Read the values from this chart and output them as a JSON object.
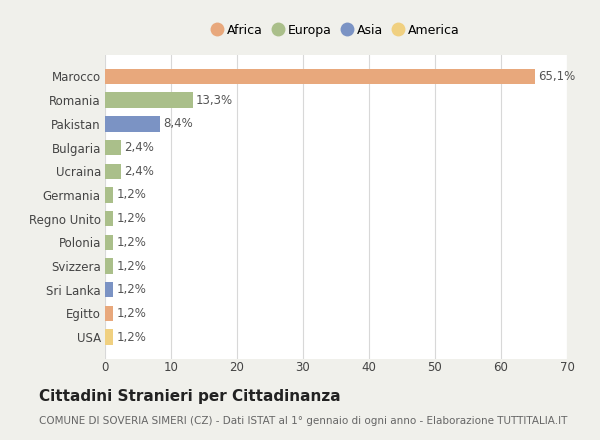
{
  "countries": [
    "Marocco",
    "Romania",
    "Pakistan",
    "Bulgaria",
    "Ucraina",
    "Germania",
    "Regno Unito",
    "Polonia",
    "Svizzera",
    "Sri Lanka",
    "Egitto",
    "USA"
  ],
  "values": [
    65.1,
    13.3,
    8.4,
    2.4,
    2.4,
    1.2,
    1.2,
    1.2,
    1.2,
    1.2,
    1.2,
    1.2
  ],
  "labels": [
    "65,1%",
    "13,3%",
    "8,4%",
    "2,4%",
    "2,4%",
    "1,2%",
    "1,2%",
    "1,2%",
    "1,2%",
    "1,2%",
    "1,2%",
    "1,2%"
  ],
  "continents": [
    "Africa",
    "Europa",
    "Asia",
    "Europa",
    "Europa",
    "Europa",
    "Europa",
    "Europa",
    "Europa",
    "Asia",
    "Africa",
    "America"
  ],
  "colors": {
    "Africa": "#E8A87C",
    "Europa": "#AABF8A",
    "Asia": "#7B93C4",
    "America": "#F0D080"
  },
  "legend_order": [
    "Africa",
    "Europa",
    "Asia",
    "America"
  ],
  "xlim": [
    0,
    70
  ],
  "xticks": [
    0,
    10,
    20,
    30,
    40,
    50,
    60,
    70
  ],
  "title": "Cittadini Stranieri per Cittadinanza",
  "subtitle": "COMUNE DI SOVERIA SIMERI (CZ) - Dati ISTAT al 1° gennaio di ogni anno - Elaborazione TUTTITALIA.IT",
  "background_color": "#f0f0eb",
  "bar_background": "#ffffff",
  "grid_color": "#d8d8d8",
  "title_fontsize": 11,
  "subtitle_fontsize": 7.5,
  "label_fontsize": 8.5,
  "tick_fontsize": 8.5,
  "legend_fontsize": 9
}
